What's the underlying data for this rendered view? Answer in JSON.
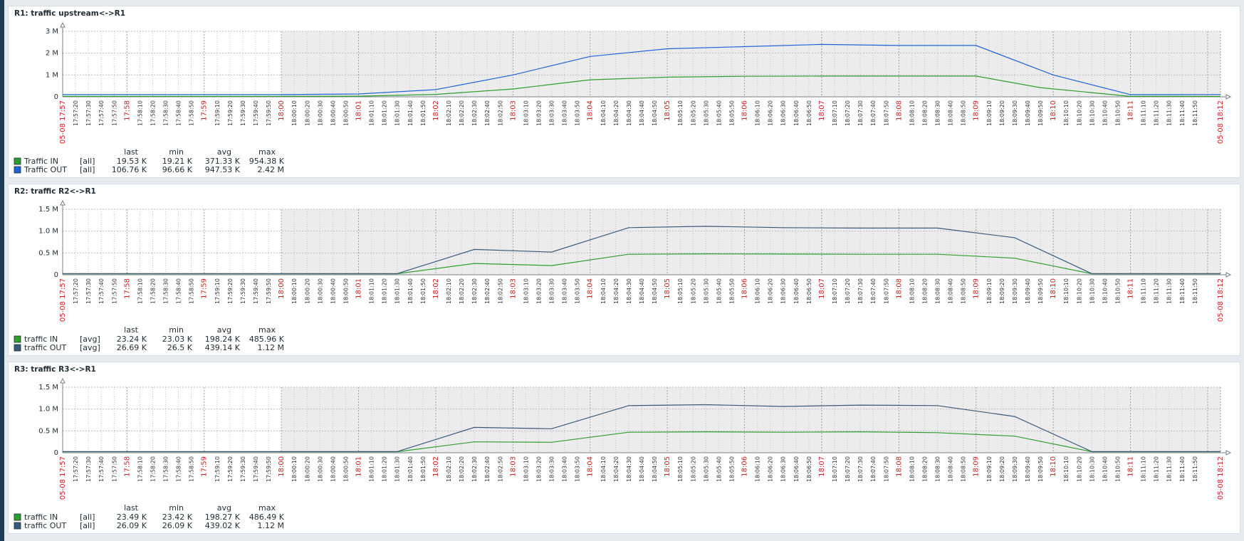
{
  "colors": {
    "in_green": "#2f9e2f",
    "out_blue_bright": "#1f63d6",
    "out_slate": "#3a5a7a",
    "major_tick": "#cc2222",
    "minor_tick": "#333333",
    "highlight_bg": "#ececec"
  },
  "time_labels": {
    "first": "05-08 17:57",
    "last": "05-08 18:12",
    "ticks": [
      "17:57:20",
      "17:57:30",
      "17:57:40",
      "17:57:50",
      "17:58",
      "17:58:10",
      "17:58:20",
      "17:58:30",
      "17:58:40",
      "17:58:50",
      "17:59",
      "17:59:10",
      "17:59:20",
      "17:59:30",
      "17:59:40",
      "17:59:50",
      "18:00",
      "18:00:10",
      "18:00:20",
      "18:00:30",
      "18:00:40",
      "18:00:50",
      "18:01",
      "18:01:10",
      "18:01:20",
      "18:01:30",
      "18:01:40",
      "18:01:50",
      "18:02",
      "18:02:10",
      "18:02:20",
      "18:02:30",
      "18:02:40",
      "18:02:50",
      "18:03",
      "18:03:10",
      "18:03:20",
      "18:03:30",
      "18:03:40",
      "18:03:50",
      "18:04",
      "18:04:10",
      "18:04:20",
      "18:04:30",
      "18:04:40",
      "18:04:50",
      "18:05",
      "18:05:10",
      "18:05:20",
      "18:05:30",
      "18:05:40",
      "18:05:50",
      "18:06",
      "18:06:10",
      "18:06:20",
      "18:06:30",
      "18:06:40",
      "18:06:50",
      "18:07",
      "18:07:10",
      "18:07:20",
      "18:07:30",
      "18:07:40",
      "18:07:50",
      "18:08",
      "18:08:10",
      "18:08:20",
      "18:08:30",
      "18:08:40",
      "18:08:50",
      "18:09",
      "18:09:10",
      "18:09:20",
      "18:09:30",
      "18:09:40",
      "18:09:50",
      "18:10",
      "18:10:10",
      "18:10:20",
      "18:10:30",
      "18:10:40",
      "18:10:50",
      "18:11",
      "18:11:10",
      "18:11:20",
      "18:11:30",
      "18:11:40",
      "18:11:50",
      "18:12"
    ]
  },
  "chart_data": [
    {
      "type": "line",
      "title": "R1: traffic upstream<->R1",
      "x_unit": "seconds after 17:57:10",
      "x_range": [
        0,
        900
      ],
      "highlight_from": 170,
      "ylim": [
        0,
        3000000
      ],
      "y_ticks": [
        {
          "value": 0,
          "label": "0"
        },
        {
          "value": 1000000,
          "label": "1 M"
        },
        {
          "value": 2000000,
          "label": "2 M"
        },
        {
          "value": 3000000,
          "label": "3 M"
        }
      ],
      "legend_header": {
        "last": "last",
        "min": "min",
        "avg": "avg",
        "max": "max"
      },
      "series": [
        {
          "name": "Traffic IN",
          "func": "[all]",
          "color": "#2f9e2f",
          "last": "19.53 K",
          "min": "19.21 K",
          "avg": "371.33 K",
          "max": "954.38 K",
          "x": [
            0,
            170,
            230,
            290,
            350,
            410,
            470,
            530,
            590,
            650,
            710,
            760,
            830,
            890,
            900
          ],
          "y": [
            20000,
            20000,
            30000,
            110000,
            360000,
            780000,
            900000,
            940000,
            950000,
            950000,
            950000,
            420000,
            20000,
            20000,
            20000
          ]
        },
        {
          "name": "Traffic OUT",
          "func": "[all]",
          "color": "#1f63d6",
          "last": "106.76 K",
          "min": "96.66 K",
          "avg": "947.53 K",
          "max": "2.42 M",
          "x": [
            0,
            170,
            230,
            290,
            350,
            410,
            470,
            530,
            590,
            650,
            710,
            770,
            830,
            890,
            900
          ],
          "y": [
            100000,
            100000,
            130000,
            330000,
            1000000,
            1850000,
            2200000,
            2300000,
            2400000,
            2350000,
            2350000,
            1000000,
            100000,
            105000,
            107000
          ]
        }
      ]
    },
    {
      "type": "line",
      "title": "R2: traffic R2<->R1",
      "x_unit": "seconds after 17:57:10",
      "x_range": [
        0,
        900
      ],
      "highlight_from": 170,
      "ylim": [
        0,
        1500000
      ],
      "y_ticks": [
        {
          "value": 0,
          "label": "0"
        },
        {
          "value": 500000,
          "label": "0.5 M"
        },
        {
          "value": 1000000,
          "label": "1.0 M"
        },
        {
          "value": 1500000,
          "label": "1.5 M"
        }
      ],
      "legend_header": {
        "last": "last",
        "min": "min",
        "avg": "avg",
        "max": "max"
      },
      "series": [
        {
          "name": "traffic IN",
          "func": "[avg]",
          "color": "#2f9e2f",
          "last": "23.24 K",
          "min": "23.03 K",
          "avg": "198.24 K",
          "max": "485.96 K",
          "x": [
            0,
            170,
            260,
            320,
            380,
            440,
            500,
            560,
            620,
            680,
            740,
            800,
            840,
            900
          ],
          "y": [
            23000,
            23000,
            23000,
            260000,
            210000,
            470000,
            480000,
            475000,
            470000,
            470000,
            380000,
            23000,
            23000,
            23000
          ]
        },
        {
          "name": "traffic OUT",
          "func": "[avg]",
          "color": "#3a5a7a",
          "last": "26.69 K",
          "min": "26.5 K",
          "avg": "439.14 K",
          "max": "1.12 M",
          "x": [
            0,
            170,
            260,
            320,
            380,
            440,
            500,
            560,
            620,
            680,
            740,
            800,
            840,
            900
          ],
          "y": [
            26000,
            26000,
            26000,
            580000,
            520000,
            1080000,
            1110000,
            1080000,
            1070000,
            1070000,
            850000,
            26000,
            26500,
            26700
          ]
        }
      ]
    },
    {
      "type": "line",
      "title": "R3: traffic R3<->R1",
      "x_unit": "seconds after 17:57:10",
      "x_range": [
        0,
        900
      ],
      "highlight_from": 170,
      "ylim": [
        0,
        1500000
      ],
      "y_ticks": [
        {
          "value": 0,
          "label": "0"
        },
        {
          "value": 500000,
          "label": "0.5 M"
        },
        {
          "value": 1000000,
          "label": "1.0 M"
        },
        {
          "value": 1500000,
          "label": "1.5 M"
        }
      ],
      "legend_header": {
        "last": "last",
        "min": "min",
        "avg": "avg",
        "max": "max"
      },
      "series": [
        {
          "name": "traffic IN",
          "func": "[all]",
          "color": "#2f9e2f",
          "last": "23.49 K",
          "min": "23.42 K",
          "avg": "198.27 K",
          "max": "486.49 K",
          "x": [
            0,
            170,
            260,
            320,
            380,
            440,
            500,
            560,
            620,
            680,
            740,
            800,
            840,
            900
          ],
          "y": [
            23000,
            23000,
            23000,
            250000,
            240000,
            470000,
            480000,
            470000,
            480000,
            460000,
            380000,
            23000,
            23400,
            23500
          ]
        },
        {
          "name": "traffic OUT",
          "func": "[all]",
          "color": "#3a5a7a",
          "last": "26.09 K",
          "min": "26.09 K",
          "avg": "439.02 K",
          "max": "1.12 M",
          "x": [
            0,
            170,
            260,
            320,
            380,
            440,
            500,
            560,
            620,
            680,
            740,
            800,
            840,
            900
          ],
          "y": [
            26000,
            26000,
            26000,
            580000,
            550000,
            1080000,
            1100000,
            1060000,
            1090000,
            1080000,
            830000,
            26000,
            26000,
            26000
          ]
        }
      ]
    }
  ]
}
